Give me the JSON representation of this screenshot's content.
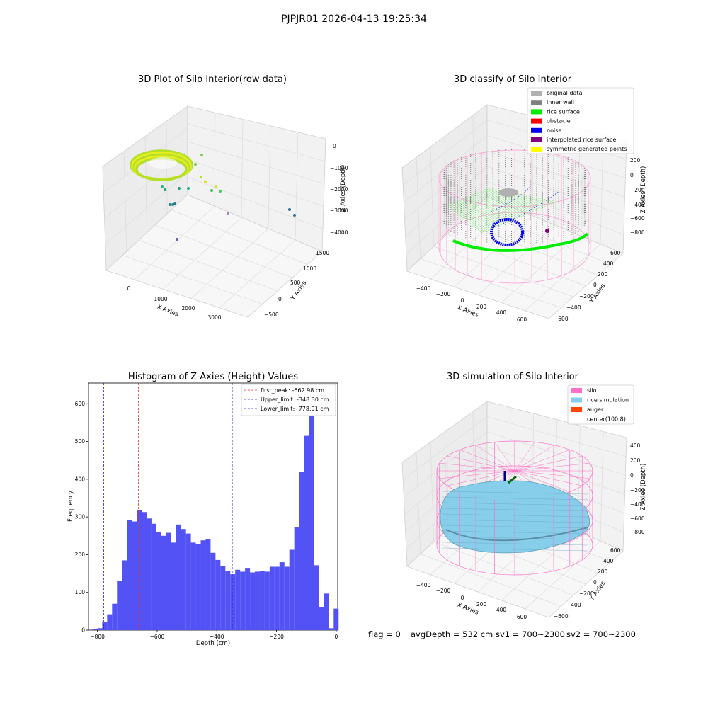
{
  "figure": {
    "suptitle": "PJPJR01 2026-04-13 19:25:34",
    "footer": {
      "flag": "flag = 0",
      "avg": "avgDepth = 532 cm",
      "sv1": "sv1 = 700~2300",
      "sv2": "sv2 = 700~2300"
    }
  },
  "colors": {
    "hist_bar": "#5050f5",
    "first_peak": "#e03030",
    "limit": "#2222cc",
    "silo": "#ff6ec7",
    "rice_sim": "#87ceeb",
    "auger": "#ff4500",
    "gray_data": "#b0b0b0",
    "inner_wall": "#808080",
    "rice_surface": "#00ee00",
    "obstacle": "#ff0000",
    "noise": "#0000ee",
    "interp": "#800080",
    "sym": "#ffff00"
  },
  "chart_data": [
    {
      "type": "scatter",
      "projection": "3d",
      "title": "3D Plot of Silo Interior(row data)",
      "xlabel": "X Axies",
      "ylabel": "Y Axies",
      "zlabel": "Z Axies (Depth)",
      "x_ticks": [
        "0",
        "1000",
        "2000",
        "3000"
      ],
      "y_ticks": [
        "−500",
        "0",
        "500",
        "1000",
        "1500"
      ],
      "z_ticks": [
        "0",
        "−1000",
        "−2000",
        "−3000",
        "−4000"
      ],
      "colormap": "viridis"
    },
    {
      "type": "scatter",
      "projection": "3d",
      "title": "3D classify of Silo Interior",
      "xlabel": "X Axies",
      "ylabel": "Y Axies",
      "zlabel": "Z Axies (Depth)",
      "x_ticks": [
        "−400",
        "−200",
        "0",
        "200",
        "400",
        "600"
      ],
      "y_ticks": [
        "−600",
        "−400",
        "−200",
        "0",
        "200",
        "400",
        "600"
      ],
      "z_ticks": [
        "200",
        "0",
        "−200",
        "−400",
        "−600",
        "−800"
      ],
      "legend_position": "top-right",
      "legend": [
        {
          "label": "original data",
          "color": "#b0b0b0"
        },
        {
          "label": "inner wall",
          "color": "#808080"
        },
        {
          "label": "rice surface",
          "color": "#00ee00"
        },
        {
          "label": "obstacle",
          "color": "#ff0000"
        },
        {
          "label": "noise",
          "color": "#0000ee"
        },
        {
          "label": "interpolated rice surface",
          "color": "#800080"
        },
        {
          "label": "symmetric generated points",
          "color": "#ffff00"
        }
      ]
    },
    {
      "type": "bar",
      "title": "Histogram of Z-Axies (Height) Values",
      "xlabel": "Depth (cm)",
      "ylabel": "Frequency",
      "xlim": [
        -830,
        5
      ],
      "ylim": [
        0,
        655
      ],
      "x_ticks": [
        -800,
        -600,
        -400,
        -200,
        0
      ],
      "x_tick_labels": [
        "−800",
        "−600",
        "−400",
        "−200",
        "0"
      ],
      "y_ticks": [
        0,
        100,
        200,
        300,
        400,
        500,
        600
      ],
      "bin_start": -817,
      "bin_width": 16.5,
      "values": [
        2,
        5,
        22,
        42,
        70,
        130,
        185,
        292,
        288,
        318,
        313,
        296,
        282,
        260,
        250,
        258,
        232,
        280,
        268,
        256,
        232,
        228,
        238,
        242,
        205,
        186,
        170,
        156,
        148,
        160,
        155,
        165,
        153,
        155,
        157,
        155,
        168,
        168,
        180,
        168,
        213,
        273,
        420,
        515,
        625,
        172,
        60,
        97,
        5,
        57
      ],
      "vlines": [
        {
          "name": "first_peak: -662.98 cm",
          "x": -662.98,
          "color": "#e03030"
        },
        {
          "name": "Upper_limit: -348.30 cm",
          "x": -348.3,
          "color": "#2222cc"
        },
        {
          "name": "Lower_limit: -778.91 cm",
          "x": -778.91,
          "color": "#2222cc"
        }
      ],
      "legend_position": "top-right"
    },
    {
      "type": "surface",
      "projection": "3d",
      "title": "3D simulation of Silo Interior",
      "xlabel": "X Axies",
      "ylabel": "Y Axies",
      "zlabel": "Z Axies (Depth)",
      "x_ticks": [
        "−400",
        "−200",
        "0",
        "200",
        "400",
        "600"
      ],
      "y_ticks": [
        "−600",
        "−400",
        "−200",
        "0",
        "200",
        "400",
        "600"
      ],
      "z_ticks": [
        "400",
        "200",
        "0",
        "−200",
        "−400",
        "−600",
        "−800"
      ],
      "legend_position": "top-right",
      "legend": [
        {
          "label": "silo",
          "color": "#ff6ec7"
        },
        {
          "label": "rice simulation",
          "color": "#87ceeb"
        },
        {
          "label": "auger",
          "color": "#ff4500"
        },
        {
          "label": "center(100,8)",
          "color": ""
        }
      ]
    }
  ]
}
